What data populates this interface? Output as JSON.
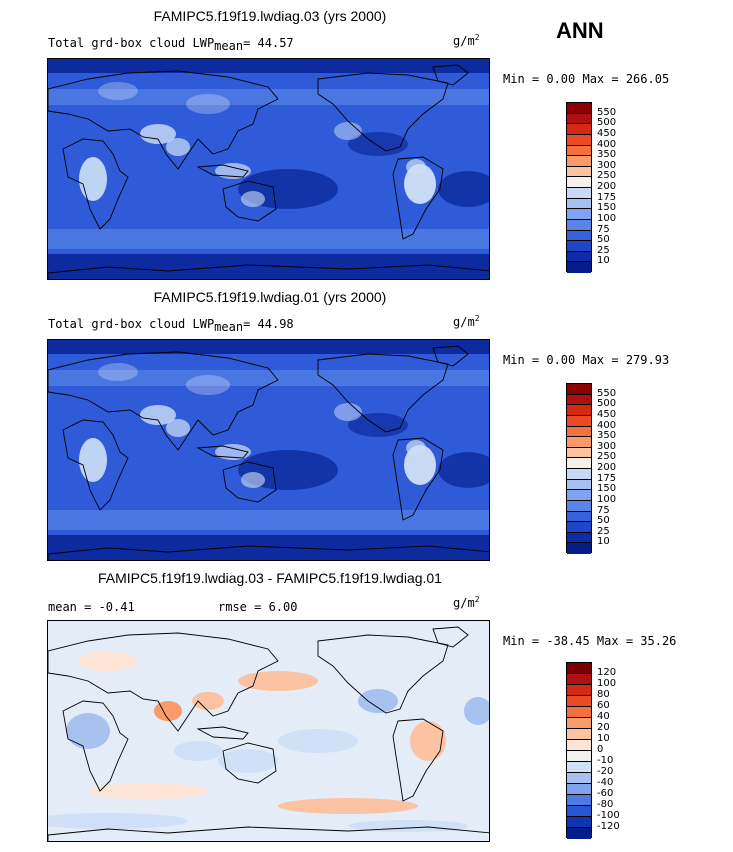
{
  "season": "ANN",
  "units": "g/m",
  "units_exp": "2",
  "panels": [
    {
      "title": "FAMIPC5.f19f19.lwdiag.03 (yrs 2000)",
      "label": "Total grd-box cloud LWP",
      "stat_sub": "mean",
      "stat_value": "=  44.57",
      "minmax": "Min =   0.00 Max = 266.05",
      "levels": [
        "550",
        "500",
        "450",
        "400",
        "350",
        "300",
        "250",
        "200",
        "175",
        "150",
        "100",
        "75",
        "50",
        "25",
        "10"
      ],
      "colors": [
        "#8b0000",
        "#b01010",
        "#d42a14",
        "#ea4a24",
        "#f4703e",
        "#f89a6a",
        "#fcc3a3",
        "#f4f0ec",
        "#c8d9f5",
        "#a5c0f2",
        "#7fa3ee",
        "#5a84e6",
        "#3761da",
        "#1e46c6",
        "#0e2ba8",
        "#061c88"
      ]
    },
    {
      "title": "FAMIPC5.f19f19.lwdiag.01 (yrs 2000)",
      "label": "Total grd-box cloud LWP",
      "stat_sub": "mean",
      "stat_value": "=  44.98",
      "minmax": "Min =   0.00 Max = 279.93",
      "levels": [
        "550",
        "500",
        "450",
        "400",
        "350",
        "300",
        "250",
        "200",
        "175",
        "150",
        "100",
        "75",
        "50",
        "25",
        "10"
      ],
      "colors": [
        "#8b0000",
        "#b01010",
        "#d42a14",
        "#ea4a24",
        "#f4703e",
        "#f89a6a",
        "#fcc3a3",
        "#f4f0ec",
        "#c8d9f5",
        "#a5c0f2",
        "#7fa3ee",
        "#5a84e6",
        "#3761da",
        "#1e46c6",
        "#0e2ba8",
        "#061c88"
      ]
    },
    {
      "title": "FAMIPC5.f19f19.lwdiag.03 - FAMIPC5.f19f19.lwdiag.01",
      "mean_label": "mean =  -0.41",
      "rmse_label": "rmse =   6.00",
      "minmax": "Min = -38.45 Max =  35.26",
      "levels": [
        "120",
        "100",
        "80",
        "60",
        "40",
        "20",
        "10",
        "0",
        "-10",
        "-20",
        "-40",
        "-60",
        "-80",
        "-100",
        "-120"
      ],
      "colors": [
        "#7a0000",
        "#b01010",
        "#d42a14",
        "#ea4a24",
        "#f4703e",
        "#f89a6a",
        "#fcc3a3",
        "#fde4d4",
        "#f4f0ec",
        "#cfe0f7",
        "#a8c2f0",
        "#7fa3ee",
        "#4f7ae4",
        "#2a55d4",
        "#1034b4",
        "#061c88"
      ]
    }
  ],
  "chart_data": [
    {
      "type": "heatmap",
      "title": "FAMIPC5.f19f19.lwdiag.03 (yrs 2000)",
      "variable": "Total grd-box cloud LWP",
      "units": "g/m2",
      "mean": 44.57,
      "min": 0.0,
      "max": 266.05,
      "contour_levels": [
        10,
        25,
        50,
        75,
        100,
        150,
        175,
        200,
        250,
        300,
        350,
        400,
        450,
        500,
        550
      ]
    },
    {
      "type": "heatmap",
      "title": "FAMIPC5.f19f19.lwdiag.01 (yrs 2000)",
      "variable": "Total grd-box cloud LWP",
      "units": "g/m2",
      "mean": 44.98,
      "min": 0.0,
      "max": 279.93,
      "contour_levels": [
        10,
        25,
        50,
        75,
        100,
        150,
        175,
        200,
        250,
        300,
        350,
        400,
        450,
        500,
        550
      ]
    },
    {
      "type": "heatmap",
      "title": "FAMIPC5.f19f19.lwdiag.03 - FAMIPC5.f19f19.lwdiag.01",
      "units": "g/m2",
      "mean": -0.41,
      "rmse": 6.0,
      "min": -38.45,
      "max": 35.26,
      "contour_levels": [
        -120,
        -100,
        -80,
        -60,
        -40,
        -20,
        -10,
        0,
        10,
        20,
        40,
        60,
        80,
        100,
        120
      ]
    }
  ]
}
